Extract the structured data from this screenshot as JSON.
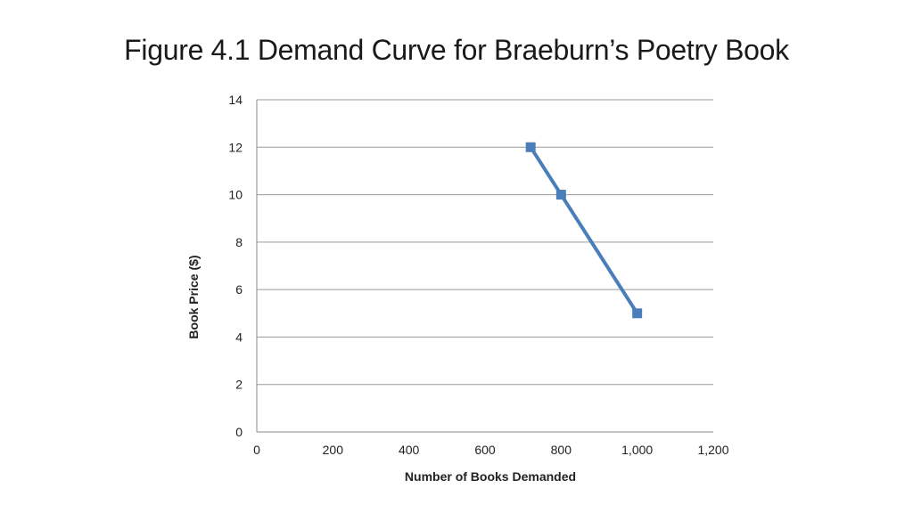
{
  "slide": {
    "title": "Figure 4.1 Demand Curve for Braeburn’s Poetry Book"
  },
  "chart_data": {
    "type": "line",
    "title": "",
    "xlabel": "Number of Books Demanded",
    "ylabel": "Book Price ($)",
    "xlim": [
      0,
      1200
    ],
    "ylim": [
      0,
      14
    ],
    "x_ticks": [
      0,
      200,
      400,
      600,
      800,
      1000,
      1200
    ],
    "x_tick_labels": [
      "0",
      "200",
      "400",
      "600",
      "800",
      "1,000",
      "1,200"
    ],
    "y_ticks": [
      0,
      2,
      4,
      6,
      8,
      10,
      12,
      14
    ],
    "y_tick_labels": [
      "0",
      "2",
      "4",
      "6",
      "8",
      "10",
      "12",
      "14"
    ],
    "grid": "horizontal",
    "legend": "none",
    "series": [
      {
        "color": "#4a7ebb",
        "marker": "square",
        "points": [
          {
            "x": 720,
            "y": 12
          },
          {
            "x": 800,
            "y": 10
          },
          {
            "x": 1000,
            "y": 5
          }
        ]
      }
    ]
  }
}
